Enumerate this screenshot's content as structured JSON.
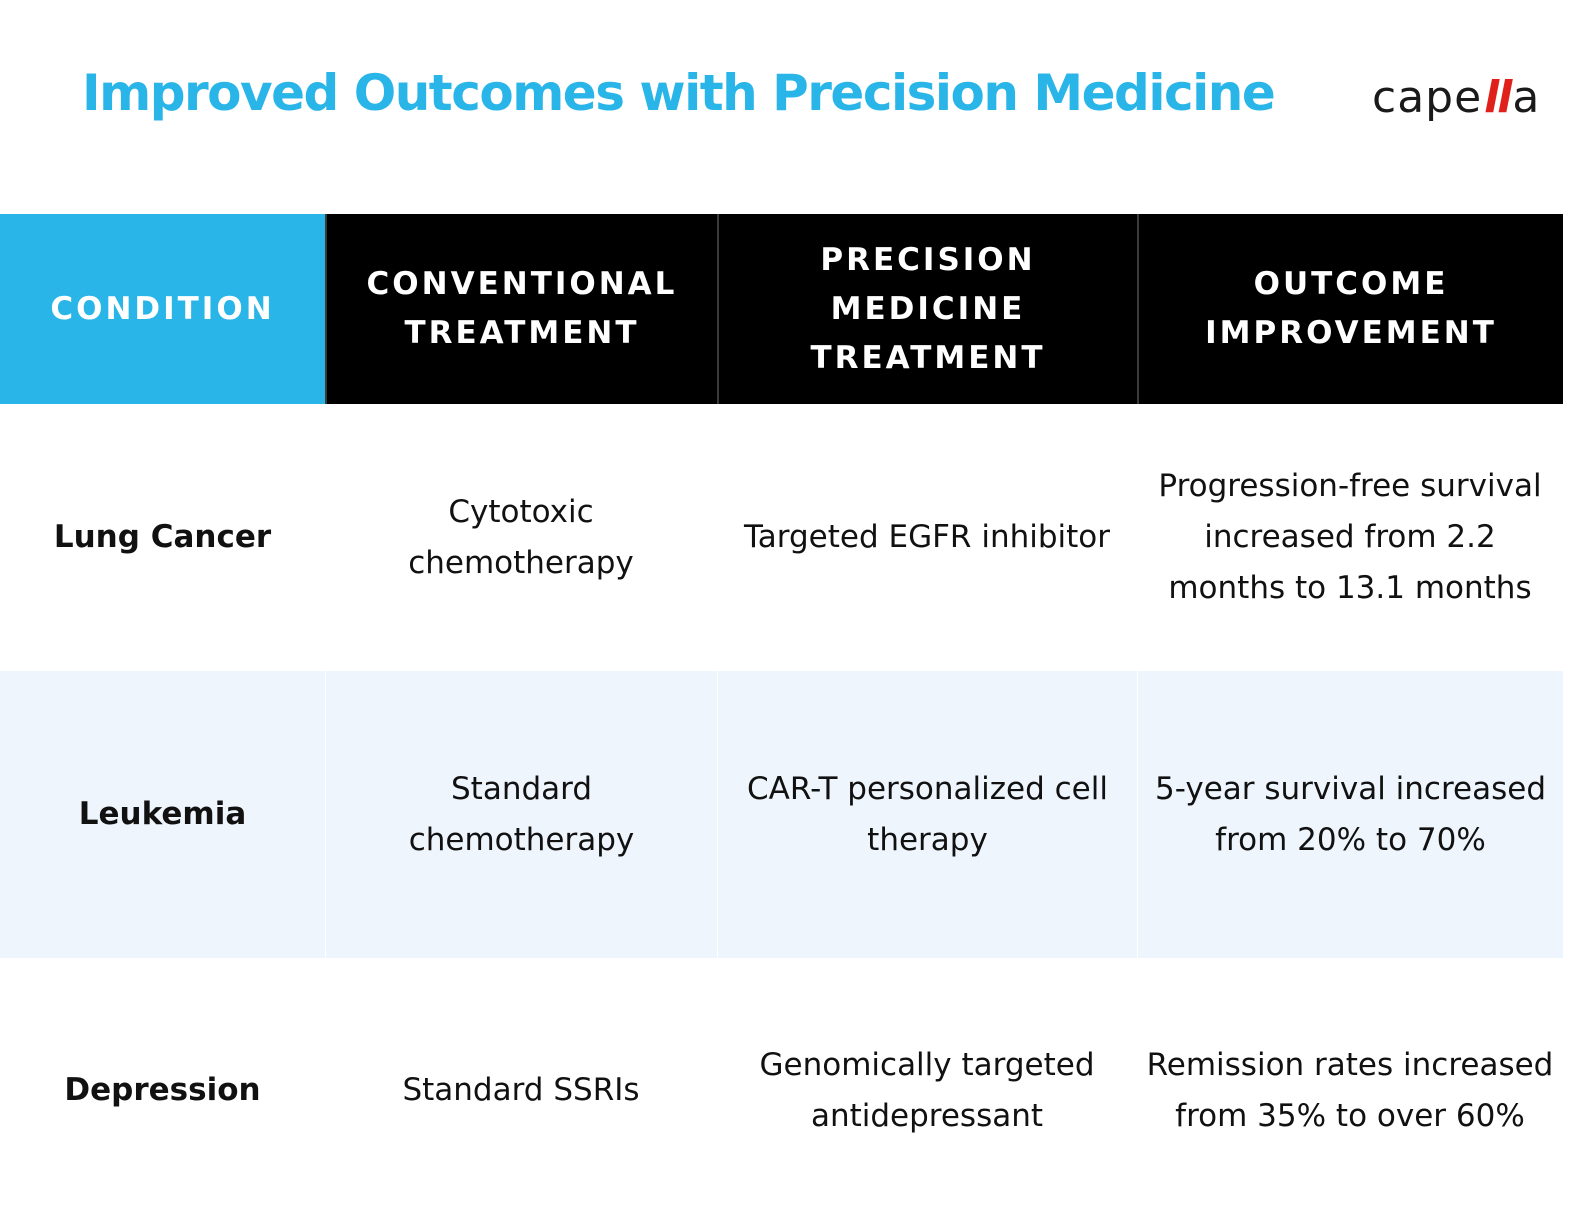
{
  "title": "Improved Outcomes with Precision Medicine",
  "logo": {
    "prefix": "cape",
    "accent": "ll",
    "suffix": "a"
  },
  "colors": {
    "accent_blue": "#29B5E8",
    "logo_red": "#E0201B",
    "header_black": "#000000",
    "stripe": "#EEF5FD"
  },
  "table": {
    "headers": [
      [
        "CONDITION"
      ],
      [
        "CONVENTIONAL",
        "TREATMENT"
      ],
      [
        "PRECISION MEDICINE",
        "TREATMENT"
      ],
      [
        "OUTCOME",
        "IMPROVEMENT"
      ]
    ],
    "rows": [
      {
        "condition": "Lung Cancer",
        "conventional": [
          "Cytotoxic",
          "chemotherapy"
        ],
        "precision": [
          "Targeted EGFR inhibitor"
        ],
        "outcome": [
          "Progression-free survival",
          "increased from 2.2",
          "months to 13.1 months"
        ]
      },
      {
        "condition": "Leukemia",
        "conventional": [
          "Standard chemotherapy"
        ],
        "precision": [
          "CAR-T personalized cell",
          "therapy"
        ],
        "outcome": [
          "5-year survival increased",
          "from 20% to 70%"
        ]
      },
      {
        "condition": "Depression",
        "conventional": [
          "Standard SSRIs"
        ],
        "precision": [
          "Genomically targeted",
          "antidepressant"
        ],
        "outcome": [
          "Remission rates increased",
          "from 35% to over 60%"
        ]
      }
    ]
  }
}
